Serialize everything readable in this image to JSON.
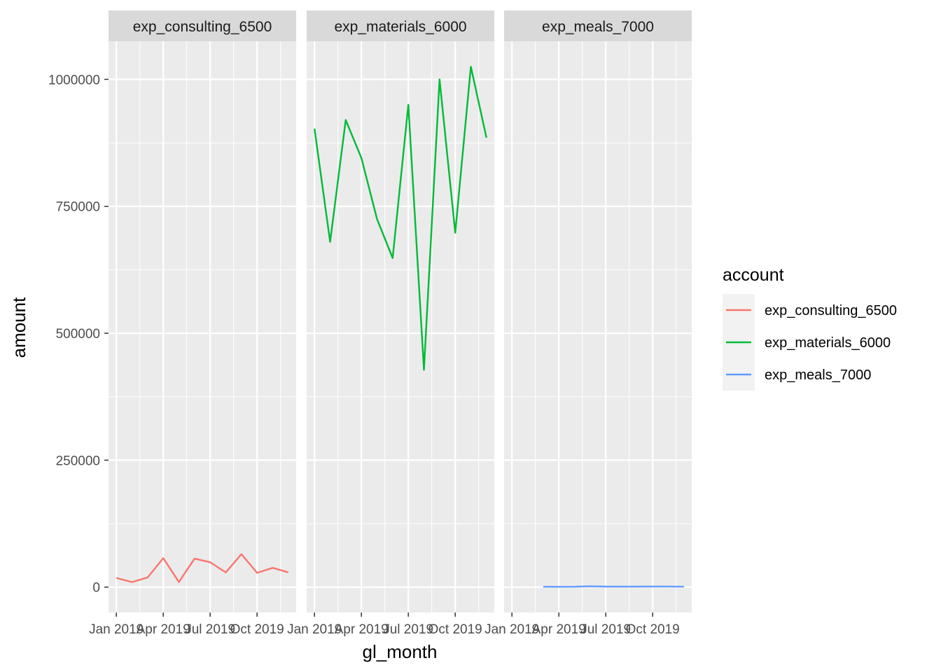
{
  "chart_data": {
    "type": "line",
    "xlabel": "gl_month",
    "ylabel": "amount",
    "x_tick_labels": [
      "Jan 2019",
      "Apr 2019",
      "Jul 2019",
      "Oct 2019"
    ],
    "x_tick_months": [
      0,
      3,
      6,
      9
    ],
    "x_range_months": [
      -0.5,
      11.5
    ],
    "y_ticks": [
      0,
      250000,
      500000,
      750000,
      1000000
    ],
    "y_tick_labels": [
      "0",
      "250000",
      "500000",
      "750000",
      "1000000"
    ],
    "ylim": [
      -50000,
      1075000
    ],
    "grid": true,
    "legend": {
      "title": "account",
      "position": "right",
      "entries": [
        "exp_consulting_6500",
        "exp_materials_6000",
        "exp_meals_7000"
      ]
    },
    "x": [
      "2019-01",
      "2019-02",
      "2019-03",
      "2019-04",
      "2019-05",
      "2019-06",
      "2019-07",
      "2019-08",
      "2019-09",
      "2019-10",
      "2019-11",
      "2019-12"
    ],
    "series": [
      {
        "name": "exp_consulting_6500",
        "color": "#F8766D",
        "values": [
          18000,
          10000,
          19000,
          57000,
          10000,
          56000,
          49000,
          29000,
          65000,
          28000,
          38000,
          29000
        ]
      },
      {
        "name": "exp_materials_6000",
        "color": "#00BA38",
        "values": [
          903000,
          680000,
          920000,
          845000,
          725000,
          648000,
          950000,
          428000,
          1000000,
          698000,
          1025000,
          885000
        ]
      },
      {
        "name": "exp_meals_7000",
        "color": "#619CFF",
        "values": [
          null,
          null,
          800,
          600,
          700,
          1500,
          1000,
          900,
          1000,
          1100,
          1200,
          900
        ]
      }
    ]
  }
}
